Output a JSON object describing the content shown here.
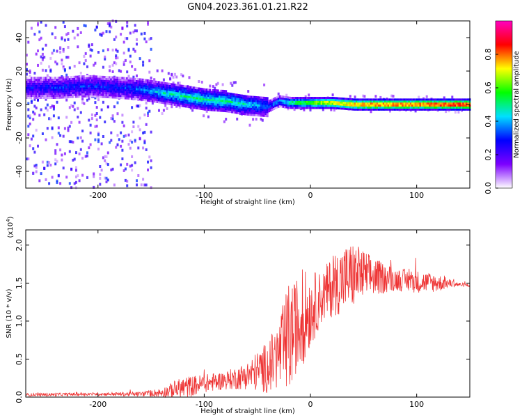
{
  "title": "GN04.2023.361.01.21.R22",
  "chart_data": [
    {
      "type": "heatmap",
      "xlabel": "Height of straight line (km)",
      "ylabel": "Frequency (Hz)",
      "xlim": [
        -268,
        150
      ],
      "ylim": [
        -50,
        50
      ],
      "xticks": [
        -200,
        -100,
        0,
        100
      ],
      "xtick_labels": [
        "-200",
        "-100",
        "0",
        "100"
      ],
      "yticks": [
        -40,
        -20,
        0,
        20,
        40
      ],
      "ytick_labels": [
        "-40",
        "-20",
        "0",
        "20",
        "40"
      ],
      "colorbar": {
        "label": "Normalized spectral amplitude",
        "range": [
          0,
          1
        ],
        "ticks": [
          0.0,
          0.2,
          0.4,
          0.6,
          0.8
        ],
        "tick_labels": [
          "0.0",
          "0.2",
          "0.4",
          "0.6",
          "0.8"
        ],
        "colors": [
          "#ffffff",
          "#7d00ff",
          "#0000ff",
          "#00e0ff",
          "#00ff00",
          "#ffff00",
          "#ff0000",
          "#ff00c0"
        ]
      },
      "ridge": {
        "x": [
          -268,
          -240,
          -210,
          -180,
          -160,
          -140,
          -120,
          -100,
          -80,
          -60,
          -40,
          -30,
          -20,
          0,
          20,
          40,
          60,
          80,
          100,
          120,
          150
        ],
        "y": [
          10,
          10,
          11,
          10,
          9,
          7,
          5,
          3,
          2,
          0,
          -1,
          2,
          1,
          1,
          1,
          0,
          0,
          0,
          0,
          0,
          0
        ],
        "amplitude": [
          0.25,
          0.3,
          0.3,
          0.3,
          0.35,
          0.45,
          0.5,
          0.5,
          0.5,
          0.45,
          0.35,
          0.4,
          0.55,
          0.7,
          0.8,
          0.85,
          0.9,
          0.9,
          0.9,
          0.95,
          0.95
        ]
      }
    },
    {
      "type": "line",
      "xlabel": "Height of straight line (km)",
      "ylabel": "SNR (10 * v/v)",
      "y_scale_label": "(x10",
      "y_scale_exp": "4",
      "y_scale_close": ")",
      "xlim": [
        -268,
        150
      ],
      "ylim": [
        0,
        2.2
      ],
      "xticks": [
        -200,
        -100,
        0,
        100
      ],
      "xtick_labels": [
        "-200",
        "-100",
        "0",
        "100"
      ],
      "yticks": [
        0.0,
        0.5,
        1.0,
        1.5,
        2.0
      ],
      "ytick_labels": [
        "0.0",
        "0.5",
        "1.0",
        "1.5",
        "2.0"
      ],
      "color": "#ee3333",
      "envelope": {
        "x": [
          -268,
          -200,
          -160,
          -140,
          -120,
          -100,
          -80,
          -60,
          -40,
          -30,
          -20,
          -15,
          -10,
          0,
          10,
          20,
          30,
          40,
          50,
          60,
          80,
          100,
          120,
          130,
          140,
          150
        ],
        "y": [
          0.03,
          0.04,
          0.04,
          0.06,
          0.12,
          0.18,
          0.22,
          0.28,
          0.4,
          0.55,
          0.75,
          0.9,
          1.0,
          1.15,
          1.3,
          1.45,
          1.55,
          1.6,
          1.6,
          1.58,
          1.55,
          1.52,
          1.5,
          1.5,
          1.48,
          1.47
        ],
        "spread": [
          0.02,
          0.02,
          0.03,
          0.06,
          0.15,
          0.12,
          0.12,
          0.18,
          0.35,
          0.45,
          0.8,
          0.6,
          0.7,
          0.5,
          0.35,
          0.4,
          0.45,
          0.45,
          0.35,
          0.25,
          0.15,
          0.15,
          0.12,
          0.06,
          0.03,
          0.02
        ]
      }
    }
  ]
}
